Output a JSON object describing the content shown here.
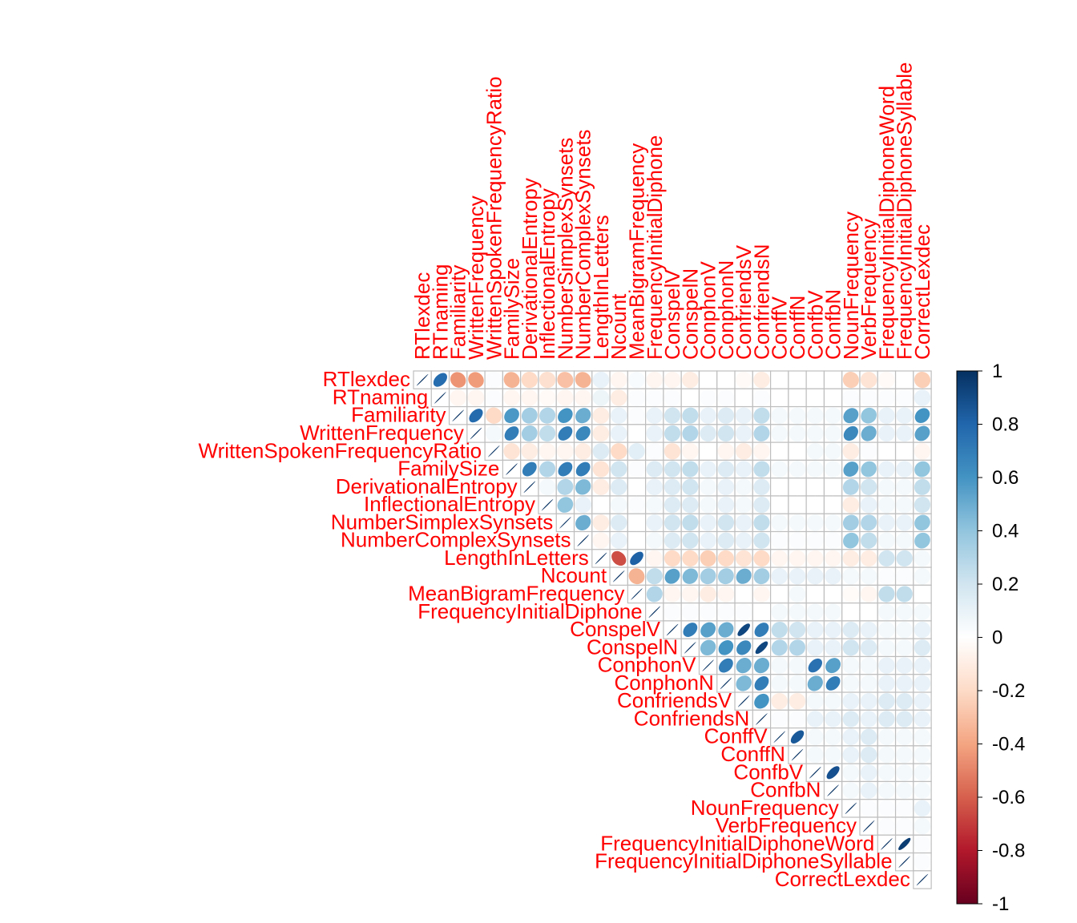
{
  "chart_data": {
    "type": "heatmap",
    "style": "upper-triangle ellipse correlation matrix",
    "title": "",
    "labels": [
      "RTlexdec",
      "RTnaming",
      "Familiarity",
      "WrittenFrequency",
      "WrittenSpokenFrequencyRatio",
      "FamilySize",
      "DerivationalEntropy",
      "InflectionalEntropy",
      "NumberSimplexSynsets",
      "NumberComplexSynsets",
      "LengthInLetters",
      "Ncount",
      "MeanBigramFrequency",
      "FrequencyInitialDiphone",
      "ConspelV",
      "ConspelN",
      "ConphonV",
      "ConphonN",
      "ConfriendsV",
      "ConfriendsN",
      "ConffV",
      "ConffN",
      "ConfbV",
      "ConfbN",
      "NounFrequency",
      "VerbFrequency",
      "FrequencyInitialDiphoneWord",
      "FrequencyInitialDiphoneSyllable",
      "CorrectLexdec"
    ],
    "label_color": "#ff0000",
    "colorbar": {
      "ticks": [
        "1",
        "0.8",
        "0.6",
        "0.4",
        "0.2",
        "0",
        "-0.2",
        "-0.4",
        "-0.6",
        "-0.8",
        "-1"
      ],
      "range": [
        -1,
        1
      ],
      "high_color": "#053061",
      "mid_color": "#ffffff",
      "low_color": "#67001f"
    },
    "correlations": [
      {
        "row": 0,
        "values": [
          1,
          0.77,
          -0.45,
          -0.43,
          0.02,
          -0.35,
          -0.2,
          -0.17,
          -0.3,
          -0.35,
          0.1,
          -0.05,
          0.03,
          -0.05,
          -0.05,
          -0.1,
          0,
          0,
          -0.03,
          -0.1,
          0,
          0,
          0,
          0,
          -0.25,
          -0.15,
          -0.03,
          0,
          -0.25
        ]
      },
      {
        "row": 1,
        "values": [
          1,
          -0.05,
          -0.05,
          0.02,
          -0.05,
          -0.05,
          -0.03,
          -0.05,
          -0.05,
          0.08,
          -0.1,
          0.02,
          0.02,
          0.02,
          0,
          0.02,
          0.02,
          0,
          0.02,
          0,
          0,
          0,
          0,
          0.02,
          0.02,
          0.02,
          0.02,
          0.1
        ]
      },
      {
        "row": 2,
        "values": [
          1,
          0.78,
          -0.2,
          0.58,
          0.35,
          0.3,
          0.6,
          0.5,
          -0.1,
          0.1,
          0.02,
          0.1,
          0.2,
          0.25,
          0.1,
          0.15,
          0.1,
          0.25,
          0.05,
          0.05,
          0.05,
          0.05,
          0.55,
          0.4,
          0.1,
          0.1,
          0.6
        ]
      },
      {
        "row": 3,
        "values": [
          1,
          0.05,
          0.7,
          0.35,
          0.25,
          0.7,
          0.65,
          -0.1,
          0.1,
          0,
          0.1,
          0.25,
          0.3,
          0.15,
          0.2,
          0.1,
          0.3,
          0.05,
          0.05,
          0.05,
          0.05,
          0.65,
          0.5,
          0.1,
          0.1,
          0.55
        ]
      },
      {
        "row": 4,
        "values": [
          1,
          -0.15,
          -0.1,
          -0.05,
          -0.05,
          -0.1,
          0.15,
          -0.2,
          0.12,
          0.02,
          -0.15,
          -0.05,
          0,
          -0.05,
          -0.1,
          -0.05,
          0,
          0,
          0.05,
          0.05,
          -0.1,
          0.02,
          0,
          0,
          -0.05
        ]
      },
      {
        "row": 5,
        "values": [
          1,
          0.7,
          0.3,
          0.7,
          0.7,
          -0.15,
          0.2,
          0.02,
          0.15,
          0.2,
          0.25,
          0.1,
          0.15,
          0.1,
          0.25,
          0.05,
          0.05,
          0.05,
          0.05,
          0.55,
          0.4,
          0.1,
          0.1,
          0.4
        ]
      },
      {
        "row": 6,
        "values": [
          1,
          0.05,
          0.3,
          0.45,
          -0.1,
          0.15,
          0,
          0.1,
          0.15,
          0.2,
          0.05,
          0.1,
          0.05,
          0.15,
          0,
          0,
          0,
          0,
          0.3,
          0.2,
          0.05,
          0.05,
          0.25
        ]
      },
      {
        "row": 7,
        "values": [
          1,
          0.4,
          0.1,
          0,
          0.05,
          0.02,
          0.05,
          0.15,
          0.15,
          0.05,
          0.1,
          0.05,
          0.15,
          0,
          0,
          0,
          0,
          -0.1,
          0.1,
          0.05,
          0.05,
          0.2
        ]
      },
      {
        "row": 8,
        "values": [
          1,
          0.5,
          -0.1,
          0.15,
          0,
          0.1,
          0.2,
          0.25,
          0.1,
          0.2,
          0.1,
          0.25,
          0.05,
          0.05,
          0.05,
          0.05,
          0.35,
          0.3,
          0.1,
          0.1,
          0.4
        ]
      },
      {
        "row": 9,
        "values": [
          1,
          -0.05,
          0.1,
          0,
          0.05,
          0.15,
          0.2,
          0.1,
          0.15,
          0.1,
          0.2,
          0.02,
          0.02,
          0.02,
          0.02,
          0.4,
          0.25,
          0.05,
          0.05,
          0.4
        ]
      },
      {
        "row": 10,
        "values": [
          1,
          -0.65,
          0.82,
          -0.05,
          -0.2,
          -0.2,
          -0.25,
          -0.2,
          -0.15,
          -0.2,
          -0.05,
          -0.05,
          -0.05,
          -0.05,
          -0.1,
          -0.1,
          0.2,
          0.2,
          0.05
        ]
      },
      {
        "row": 11,
        "values": [
          1,
          -0.35,
          0.25,
          0.55,
          0.45,
          0.35,
          0.35,
          0.5,
          0.35,
          0.1,
          0.1,
          0.1,
          0.1,
          0.05,
          0.05,
          0.02,
          0.02,
          0.05
        ]
      },
      {
        "row": 12,
        "values": [
          1,
          0.3,
          -0.05,
          -0.05,
          -0.1,
          -0.05,
          0,
          -0.05,
          0,
          0.05,
          0,
          0,
          -0.02,
          -0.05,
          0.25,
          0.25,
          0
        ]
      },
      {
        "row": 13,
        "values": [
          1,
          0.02,
          0.02,
          0.02,
          0.02,
          0.02,
          0,
          0.05,
          0.05,
          0.05,
          0.05,
          0,
          0,
          0.05,
          0.05,
          0.05
        ]
      },
      {
        "row": 14,
        "values": [
          1,
          0.7,
          0.55,
          0.5,
          0.92,
          0.7,
          0.25,
          0.2,
          0.1,
          0.1,
          0.15,
          0.1,
          0.05,
          0.05,
          0.1
        ]
      },
      {
        "row": 15,
        "values": [
          1,
          0.45,
          0.6,
          0.65,
          0.92,
          0.3,
          0.3,
          0.1,
          0.1,
          0.2,
          0.15,
          0.05,
          0.05,
          0.15
        ]
      },
      {
        "row": 16,
        "values": [
          1,
          0.7,
          0.5,
          0.5,
          0.05,
          0.05,
          0.75,
          0.55,
          0.05,
          0.05,
          0.1,
          0.1,
          0.1
        ]
      },
      {
        "row": 17,
        "values": [
          1,
          0.45,
          0.7,
          0.05,
          0.05,
          0.5,
          0.7,
          0.05,
          0.05,
          0.1,
          0.1,
          0.1
        ]
      },
      {
        "row": 18,
        "values": [
          1,
          0.6,
          -0.1,
          -0.1,
          0.05,
          0.05,
          0.1,
          0.1,
          0.15,
          0.15,
          0.1
        ]
      },
      {
        "row": 19,
        "values": [
          1,
          0.02,
          0.02,
          0.1,
          0.1,
          0.15,
          0.1,
          0.15,
          0.15,
          0.1
        ]
      },
      {
        "row": 20,
        "values": [
          1,
          0.85,
          0.05,
          0.05,
          0.1,
          0.15,
          0.05,
          0.05,
          0.05
        ]
      },
      {
        "row": 21,
        "values": [
          1,
          0.05,
          0.05,
          0.1,
          0.15,
          0.05,
          0.05,
          0.05
        ]
      },
      {
        "row": 22,
        "values": [
          1,
          0.88,
          0.05,
          0.1,
          0.05,
          0.05,
          0.05
        ]
      },
      {
        "row": 23,
        "values": [
          1,
          0.05,
          0.1,
          0.05,
          0.05,
          0.05
        ]
      },
      {
        "row": 24,
        "values": [
          1,
          0.02,
          0.02,
          0.02,
          0.1
        ]
      },
      {
        "row": 25,
        "values": [
          1,
          0.02,
          0.02,
          0.05
        ]
      },
      {
        "row": 26,
        "values": [
          1,
          0.95,
          0.02
        ]
      },
      {
        "row": 27,
        "values": [
          1,
          0.02
        ]
      },
      {
        "row": 28,
        "values": [
          1
        ]
      }
    ]
  }
}
